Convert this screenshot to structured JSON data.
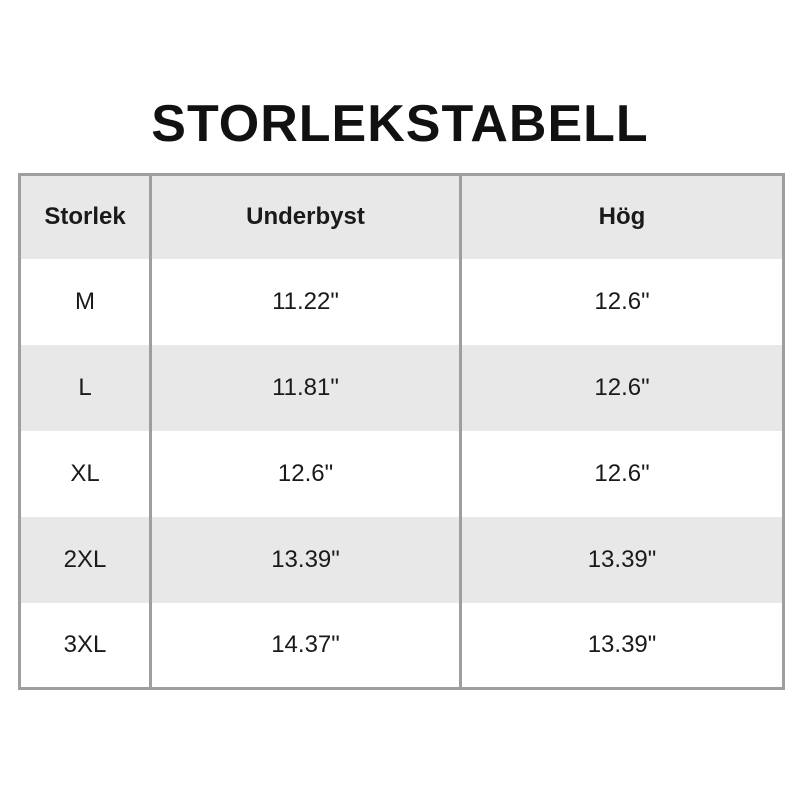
{
  "title": "STORLEKSTABELL",
  "table": {
    "headers": [
      "Storlek",
      "Underbyst",
      "Hög"
    ],
    "rows": [
      [
        "M",
        "11.22\"",
        "12.6\""
      ],
      [
        "L",
        "11.81\"",
        "12.6\""
      ],
      [
        "XL",
        "12.6\"",
        "12.6\""
      ],
      [
        "2XL",
        "13.39\"",
        "13.39\""
      ],
      [
        "3XL",
        "14.37\"",
        "13.39\""
      ]
    ]
  },
  "chart_data": {
    "type": "table",
    "title": "STORLEKSTABELL",
    "columns": [
      "Storlek",
      "Underbyst",
      "Hög"
    ],
    "rows": [
      [
        "M",
        "11.22\"",
        "12.6\""
      ],
      [
        "L",
        "11.81\"",
        "12.6\""
      ],
      [
        "XL",
        "12.6\"",
        "12.6\""
      ],
      [
        "2XL",
        "13.39\"",
        "13.39\""
      ],
      [
        "3XL",
        "14.37\"",
        "13.39\""
      ]
    ]
  },
  "colors": {
    "background": "#ffffff",
    "border": "#9e9e9e",
    "stripe": "#e8e8e8",
    "text": "#1a1a1a"
  }
}
